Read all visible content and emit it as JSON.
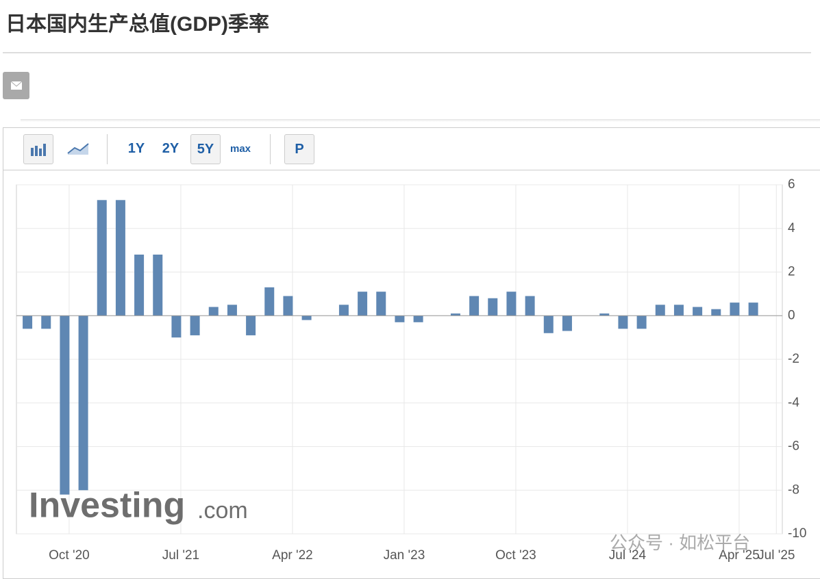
{
  "header": {
    "title": "日本国内生产总值(GDP)季率"
  },
  "toolbar": {
    "buttons": [
      "1Y",
      "2Y",
      "5Y",
      "max",
      "P"
    ]
  },
  "watermarks": [
    "Investing",
    ".com",
    "公众号 · 如松平台"
  ],
  "chart_data": {
    "type": "bar",
    "color": "#5f87b3",
    "x": [
      2020.47,
      2020.595,
      2020.72,
      2020.845,
      2020.97,
      2021.095,
      2021.22,
      2021.345,
      2021.47,
      2021.595,
      2021.72,
      2021.845,
      2021.97,
      2022.095,
      2022.22,
      2022.345,
      2022.47,
      2022.595,
      2022.72,
      2022.845,
      2022.97,
      2023.095,
      2023.22,
      2023.345,
      2023.47,
      2023.595,
      2023.72,
      2023.845,
      2023.97,
      2024.095,
      2024.22,
      2024.345,
      2024.47,
      2024.595,
      2024.72,
      2024.845,
      2024.97,
      2025.095,
      2025.22,
      2025.345
    ],
    "values": [
      -0.6,
      -0.6,
      -8.2,
      -8.0,
      5.3,
      5.3,
      2.8,
      2.8,
      -1.0,
      -0.9,
      0.4,
      0.5,
      -0.9,
      1.3,
      0.9,
      -0.2,
      0,
      0.5,
      1.1,
      1.1,
      -0.3,
      -0.3,
      0,
      0.1,
      0.9,
      0.8,
      1.1,
      0.9,
      -0.8,
      -0.7,
      0,
      0.1,
      -0.6,
      -0.6,
      0.5,
      0.5,
      0.4,
      0.3,
      0.6,
      0.6
    ],
    "xlim": [
      2020.396,
      2025.54
    ],
    "xticks": [
      {
        "value": 2020.75,
        "label": "Oct '20"
      },
      {
        "value": 2021.5,
        "label": "Jul '21"
      },
      {
        "value": 2022.25,
        "label": "Apr '22"
      },
      {
        "value": 2023,
        "label": "Jan '23"
      },
      {
        "value": 2023.75,
        "label": "Oct '23"
      },
      {
        "value": 2024.5,
        "label": "Jul '24"
      },
      {
        "value": 2025.25,
        "label": "Apr '25"
      },
      {
        "value": 2025.5,
        "label": "Jul '25"
      }
    ],
    "ylim": [
      -10,
      6
    ],
    "yticks": [
      6,
      4,
      2,
      0,
      -2,
      -4,
      -6,
      -8,
      -10
    ],
    "grid": true
  }
}
